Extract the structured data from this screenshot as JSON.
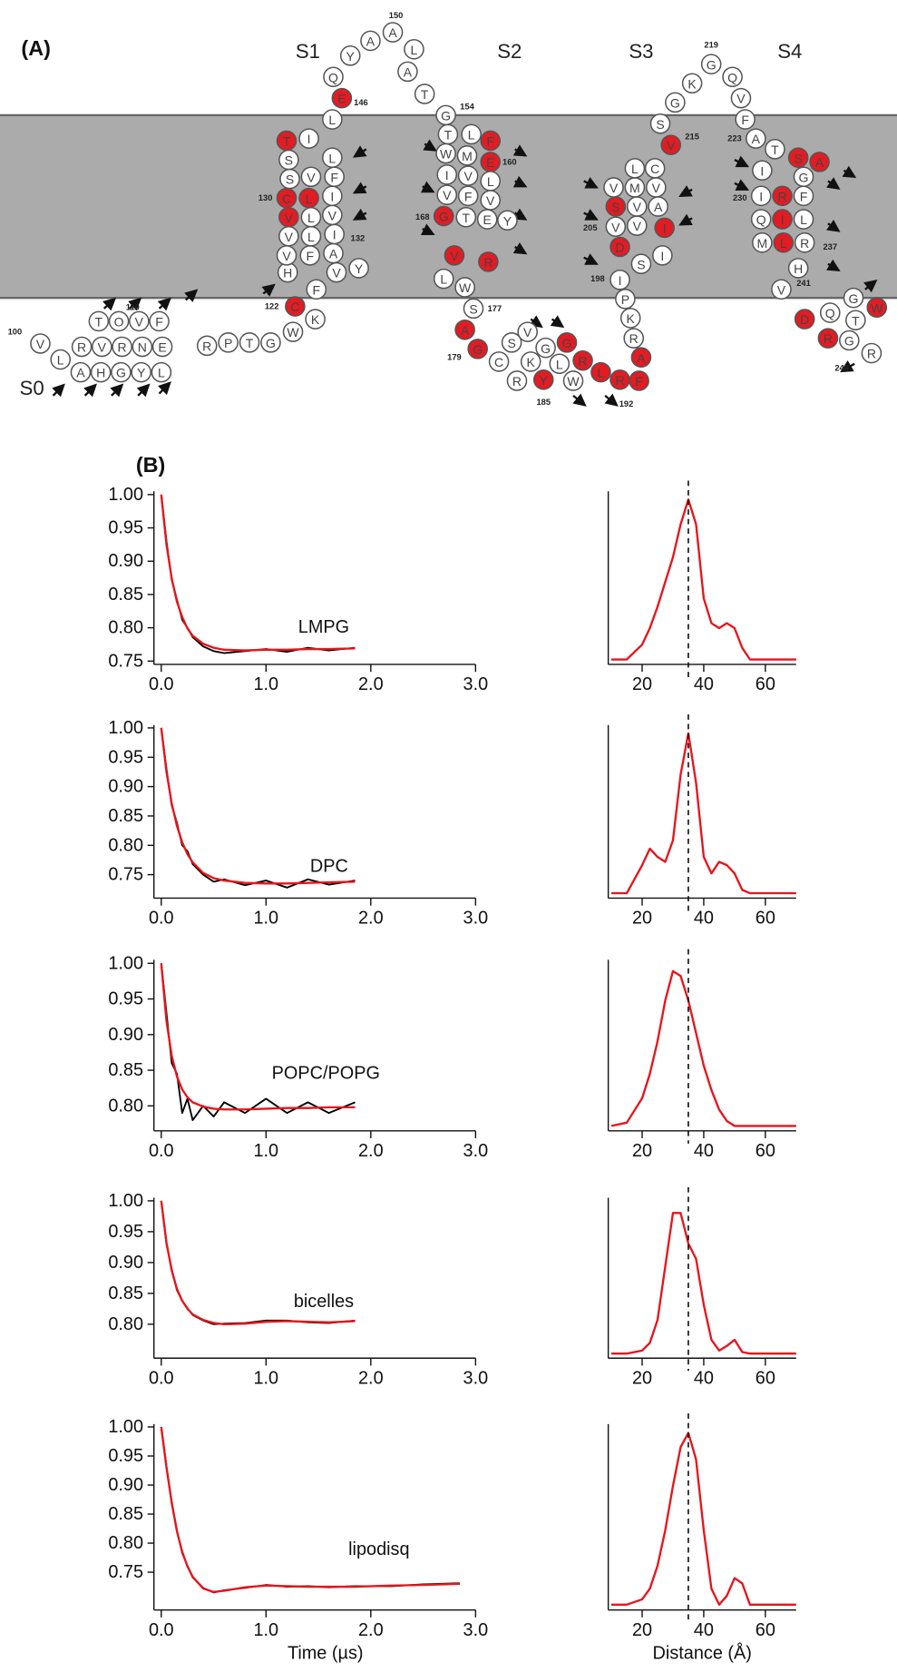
{
  "diagram": {
    "label": "(A)",
    "segments": [
      "S0",
      "S1",
      "S2",
      "S3",
      "S4"
    ],
    "residues": [
      "V",
      "L",
      "A",
      "H",
      "G",
      "Y",
      "L",
      "R",
      "V",
      "R",
      "N",
      "E",
      "T",
      "O",
      "V",
      "F",
      "R",
      "P",
      "T",
      "G",
      "W",
      "K",
      "C",
      "F",
      "H",
      "V",
      "Y",
      "V",
      "F",
      "A",
      "V",
      "L",
      "I",
      "V",
      "L",
      "V",
      "C",
      "L",
      "I",
      "S",
      "V",
      "F",
      "S",
      "L",
      "T",
      "I",
      "E",
      "L",
      "Q",
      "Y",
      "A",
      "A",
      "L",
      "A",
      "T",
      "G",
      "T",
      "L",
      "F",
      "W",
      "M",
      "E",
      "I",
      "V",
      "L",
      "V",
      "F",
      "V",
      "G",
      "T",
      "E",
      "Y",
      "V",
      "R",
      "L",
      "W",
      "S",
      "A",
      "G",
      "S",
      "C",
      "R",
      "K",
      "Y",
      "V",
      "G",
      "L",
      "W",
      "G",
      "R",
      "L",
      "R",
      "F",
      "A",
      "R",
      "K",
      "P",
      "I",
      "S",
      "I",
      "D",
      "I",
      "V",
      "V",
      "S",
      "V",
      "A",
      "M",
      "V",
      "V",
      "L",
      "C",
      "V",
      "S",
      "G",
      "K",
      "G",
      "Q",
      "V",
      "F",
      "A",
      "T",
      "S",
      "A",
      "I",
      "G",
      "I",
      "R",
      "F",
      "Q",
      "I",
      "L",
      "M",
      "L",
      "R",
      "H",
      "V",
      "D",
      "Q",
      "G",
      "W",
      "T",
      "R",
      "G",
      "R"
    ],
    "highlighted": [
      22,
      33,
      36,
      37,
      44,
      46,
      58,
      61,
      68,
      72,
      73,
      77,
      78,
      83,
      88,
      89,
      90,
      91,
      92,
      93,
      100,
      101,
      104,
      112,
      122,
      123,
      127,
      130,
      133,
      137,
      140,
      142
    ],
    "highlight_color": "#e31b23",
    "residue_numbers": [
      "100",
      "110",
      "122",
      "130",
      "132",
      "146",
      "150",
      "154",
      "160",
      "168",
      "177",
      "179",
      "185",
      "192",
      "198",
      "205",
      "215",
      "219",
      "223",
      "230",
      "237",
      "241",
      "246"
    ]
  },
  "panel_b": {
    "label": "(B)"
  },
  "chart_data": [
    {
      "type": "line",
      "annotation": "LMPG",
      "x": [
        0,
        0.05,
        0.1,
        0.15,
        0.2,
        0.25,
        0.3,
        0.4,
        0.5,
        0.6,
        0.8,
        1.0,
        1.2,
        1.4,
        1.6,
        1.85
      ],
      "series": [
        {
          "color": "#000000",
          "values": [
            1.0,
            0.93,
            0.872,
            0.842,
            0.812,
            0.8,
            0.786,
            0.772,
            0.765,
            0.762,
            0.765,
            0.768,
            0.764,
            0.77,
            0.766,
            0.77
          ]
        },
        {
          "color": "#e8141b",
          "values": [
            1.0,
            0.925,
            0.874,
            0.839,
            0.816,
            0.799,
            0.788,
            0.776,
            0.77,
            0.767,
            0.766,
            0.767,
            0.767,
            0.768,
            0.768,
            0.769
          ]
        }
      ],
      "xlim": [
        -0.07,
        3.0
      ],
      "ylim": [
        0.745,
        1.005
      ],
      "xticks": [
        {
          "value": 0,
          "label": "0.0"
        },
        {
          "value": 1,
          "label": "1.0"
        },
        {
          "value": 2,
          "label": "2.0"
        },
        {
          "value": 3,
          "label": "3.0"
        }
      ],
      "yticks": [
        0.75,
        {
          "value": 0.8,
          "label": "0.80"
        },
        0.85,
        {
          "value": 0.9,
          "label": "0.90"
        },
        0.95,
        {
          "value": 1,
          "label": "1.00"
        }
      ]
    },
    {
      "type": "line",
      "x": [
        10,
        15,
        20,
        22.5,
        25,
        27.5,
        30,
        32.5,
        35,
        37.5,
        40,
        42.5,
        45,
        47.5,
        50,
        52.5,
        55,
        60,
        70
      ],
      "values": [
        0.03,
        0.03,
        0.12,
        0.22,
        0.35,
        0.5,
        0.65,
        0.85,
        1.0,
        0.85,
        0.4,
        0.25,
        0.22,
        0.25,
        0.22,
        0.1,
        0.03,
        0.03,
        0.03
      ],
      "color": "#e8141b",
      "xlim": [
        9,
        70
      ],
      "ylim": [
        0,
        1.05
      ],
      "xticks": [
        20,
        40,
        60
      ],
      "reference_line": 35
    },
    {
      "type": "line",
      "annotation": "DPC",
      "x": [
        0,
        0.05,
        0.1,
        0.15,
        0.2,
        0.25,
        0.3,
        0.4,
        0.5,
        0.6,
        0.8,
        1.0,
        1.2,
        1.4,
        1.6,
        1.85
      ],
      "series": [
        {
          "color": "#000000",
          "values": [
            1.0,
            0.93,
            0.868,
            0.838,
            0.8,
            0.79,
            0.768,
            0.75,
            0.738,
            0.742,
            0.732,
            0.74,
            0.728,
            0.742,
            0.733,
            0.74
          ]
        },
        {
          "color": "#e8141b",
          "values": [
            1.0,
            0.925,
            0.871,
            0.833,
            0.805,
            0.785,
            0.771,
            0.753,
            0.744,
            0.74,
            0.736,
            0.735,
            0.735,
            0.736,
            0.737,
            0.738
          ]
        }
      ],
      "xlim": [
        -0.07,
        3.0
      ],
      "ylim": [
        0.71,
        1.005
      ],
      "xticks": [
        {
          "value": 0,
          "label": "0.0"
        },
        {
          "value": 1,
          "label": "1.0"
        },
        {
          "value": 2,
          "label": "2.0"
        },
        {
          "value": 3,
          "label": "3.0"
        }
      ],
      "yticks": [
        0.75,
        {
          "value": 0.8,
          "label": "0.80"
        },
        0.85,
        {
          "value": 0.9,
          "label": "0.90"
        },
        0.95,
        {
          "value": 1,
          "label": "1.00"
        }
      ]
    },
    {
      "type": "line",
      "x": [
        10,
        15,
        20,
        22.5,
        25,
        27.5,
        30,
        32.5,
        35,
        37.5,
        40,
        42.5,
        45,
        47.5,
        50,
        52.5,
        55,
        60,
        70
      ],
      "values": [
        0.03,
        0.03,
        0.2,
        0.3,
        0.25,
        0.22,
        0.35,
        0.75,
        1.0,
        0.7,
        0.25,
        0.15,
        0.22,
        0.2,
        0.15,
        0.05,
        0.03,
        0.03,
        0.03
      ],
      "color": "#e8141b",
      "xlim": [
        9,
        70
      ],
      "ylim": [
        0,
        1.05
      ],
      "xticks": [
        20,
        40,
        60
      ],
      "reference_line": 35
    },
    {
      "type": "line",
      "annotation": "POPC/POPG",
      "x": [
        0,
        0.05,
        0.1,
        0.15,
        0.2,
        0.25,
        0.3,
        0.4,
        0.5,
        0.6,
        0.8,
        1.0,
        1.2,
        1.4,
        1.6,
        1.85
      ],
      "series": [
        {
          "color": "#000000",
          "values": [
            1.0,
            0.93,
            0.86,
            0.845,
            0.79,
            0.81,
            0.78,
            0.8,
            0.785,
            0.805,
            0.79,
            0.81,
            0.79,
            0.805,
            0.79,
            0.805
          ]
        },
        {
          "color": "#e8141b",
          "values": [
            1.0,
            0.919,
            0.87,
            0.841,
            0.823,
            0.812,
            0.805,
            0.799,
            0.796,
            0.795,
            0.795,
            0.796,
            0.797,
            0.797,
            0.798,
            0.798
          ]
        }
      ],
      "xlim": [
        -0.07,
        3.0
      ],
      "ylim": [
        0.765,
        1.005
      ],
      "xticks": [
        {
          "value": 0,
          "label": "0.0"
        },
        {
          "value": 1,
          "label": "1.0"
        },
        {
          "value": 2,
          "label": "2.0"
        },
        {
          "value": 3,
          "label": "3.0"
        }
      ],
      "yticks": [
        {
          "value": 0.8,
          "label": "0.80"
        },
        0.85,
        {
          "value": 0.9,
          "label": "0.90"
        },
        0.95,
        {
          "value": 1,
          "label": "1.00"
        }
      ]
    },
    {
      "type": "line",
      "x": [
        10,
        15,
        20,
        22.5,
        25,
        27.5,
        30,
        32.5,
        35,
        37.5,
        40,
        42.5,
        45,
        47.5,
        50,
        52.5,
        55,
        60,
        70
      ],
      "values": [
        0.03,
        0.05,
        0.2,
        0.35,
        0.55,
        0.8,
        0.98,
        0.95,
        0.8,
        0.6,
        0.4,
        0.25,
        0.13,
        0.06,
        0.03,
        0.03,
        0.03,
        0.03,
        0.03
      ],
      "color": "#e8141b",
      "xlim": [
        9,
        70
      ],
      "ylim": [
        0,
        1.05
      ],
      "xticks": [
        20,
        40,
        60
      ],
      "reference_line": 35
    },
    {
      "type": "line",
      "annotation": "bicelles",
      "x": [
        0,
        0.05,
        0.1,
        0.15,
        0.2,
        0.25,
        0.3,
        0.4,
        0.5,
        0.6,
        0.8,
        1.0,
        1.2,
        1.4,
        1.6,
        1.85
      ],
      "series": [
        {
          "color": "#000000",
          "values": [
            1.0,
            0.93,
            0.889,
            0.855,
            0.838,
            0.826,
            0.815,
            0.806,
            0.8,
            0.801,
            0.802,
            0.806,
            0.806,
            0.803,
            0.802,
            0.806
          ]
        },
        {
          "color": "#e8141b",
          "values": [
            1.0,
            0.932,
            0.887,
            0.857,
            0.838,
            0.825,
            0.816,
            0.807,
            0.802,
            0.8,
            0.801,
            0.804,
            0.805,
            0.804,
            0.803,
            0.805
          ]
        }
      ],
      "xlim": [
        -0.07,
        3.0
      ],
      "ylim": [
        0.745,
        1.005
      ],
      "xticks": [
        {
          "value": 0,
          "label": "0.0"
        },
        {
          "value": 1,
          "label": "1.0"
        },
        {
          "value": 2,
          "label": "2.0"
        },
        {
          "value": 3,
          "label": "3.0"
        }
      ],
      "yticks": [
        {
          "value": 0.8,
          "label": "0.80"
        },
        0.85,
        {
          "value": 0.9,
          "label": "0.90"
        },
        0.95,
        {
          "value": 1,
          "label": "1.00"
        }
      ]
    },
    {
      "type": "line",
      "x": [
        10,
        15,
        20,
        22.5,
        25,
        27.5,
        30,
        32.5,
        35,
        37.5,
        40,
        42.5,
        45,
        47.5,
        50,
        52.5,
        55,
        60,
        70
      ],
      "values": [
        0.03,
        0.03,
        0.05,
        0.1,
        0.25,
        0.6,
        0.95,
        0.95,
        0.75,
        0.65,
        0.35,
        0.12,
        0.05,
        0.08,
        0.12,
        0.04,
        0.03,
        0.03,
        0.03
      ],
      "color": "#e8141b",
      "xlim": [
        9,
        70
      ],
      "ylim": [
        0,
        1.05
      ],
      "xticks": [
        20,
        40,
        60
      ],
      "reference_line": 35
    },
    {
      "type": "line",
      "annotation": "lipodisq",
      "xlabel": "Time (µs)",
      "x": [
        0,
        0.05,
        0.1,
        0.15,
        0.2,
        0.25,
        0.3,
        0.4,
        0.5,
        0.6,
        0.8,
        1.0,
        1.2,
        1.4,
        1.6,
        1.85,
        2.2,
        2.5,
        2.85
      ],
      "series": [
        {
          "color": "#000000",
          "values": [
            1.0,
            0.932,
            0.868,
            0.822,
            0.783,
            0.761,
            0.741,
            0.723,
            0.715,
            0.719,
            0.723,
            0.728,
            0.725,
            0.726,
            0.724,
            0.726,
            0.726,
            0.729,
            0.731
          ]
        },
        {
          "color": "#e8141b",
          "values": [
            1.0,
            0.93,
            0.87,
            0.82,
            0.785,
            0.76,
            0.742,
            0.722,
            0.716,
            0.718,
            0.724,
            0.727,
            0.726,
            0.725,
            0.725,
            0.725,
            0.727,
            0.728,
            0.73
          ]
        }
      ],
      "xlim": [
        -0.07,
        3.0
      ],
      "ylim": [
        0.685,
        1.005
      ],
      "xticks": [
        {
          "value": 0,
          "label": "0.0"
        },
        {
          "value": 1,
          "label": "1.0"
        },
        {
          "value": 2,
          "label": "2.0"
        },
        {
          "value": 3,
          "label": "3.0"
        }
      ],
      "yticks": [
        0.75,
        {
          "value": 0.8,
          "label": "0.80"
        },
        0.85,
        {
          "value": 0.9,
          "label": "0.90"
        },
        0.95,
        {
          "value": 1,
          "label": "1.00"
        }
      ]
    },
    {
      "type": "line",
      "xlabel": "Distance (Å)",
      "x": [
        10,
        15,
        20,
        22.5,
        25,
        27.5,
        30,
        32.5,
        35,
        37.5,
        40,
        42.5,
        45,
        47.5,
        50,
        52.5,
        55,
        60,
        70
      ],
      "values": [
        0.03,
        0.03,
        0.06,
        0.12,
        0.25,
        0.45,
        0.7,
        0.92,
        1.0,
        0.85,
        0.45,
        0.12,
        0.03,
        0.08,
        0.18,
        0.15,
        0.03,
        0.03,
        0.03
      ],
      "color": "#e8141b",
      "xlim": [
        9,
        70
      ],
      "ylim": [
        0,
        1.05
      ],
      "xticks": [
        20,
        40,
        60
      ],
      "reference_line": 35
    }
  ]
}
